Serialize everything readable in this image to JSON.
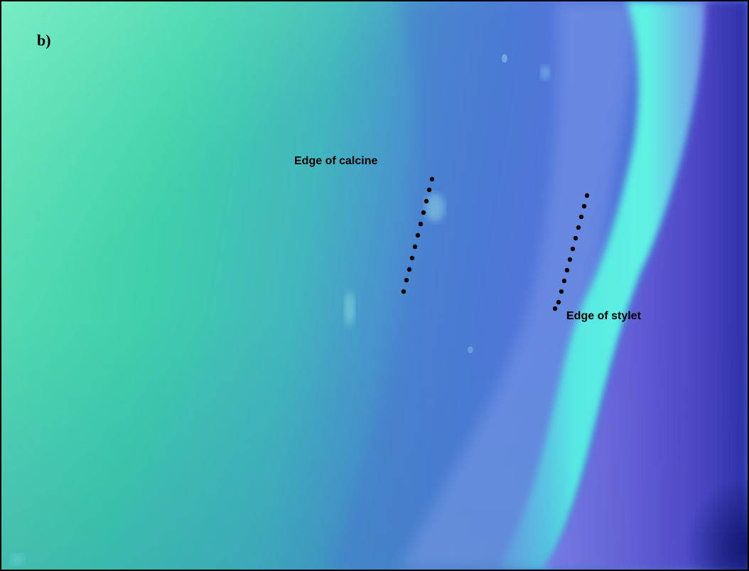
{
  "figure": {
    "panel_label": "b)",
    "annotations": {
      "calcine_edge": "Edge of calcine",
      "stylet_edge": "Edge of stylet"
    },
    "marker_color": "#000000",
    "palette": {
      "green": "#3fd3a8",
      "blue": "#4a7fd0",
      "cyan": "#4ff0e0",
      "violet": "#6a6ee0",
      "navy": "#2c2aa8"
    }
  }
}
